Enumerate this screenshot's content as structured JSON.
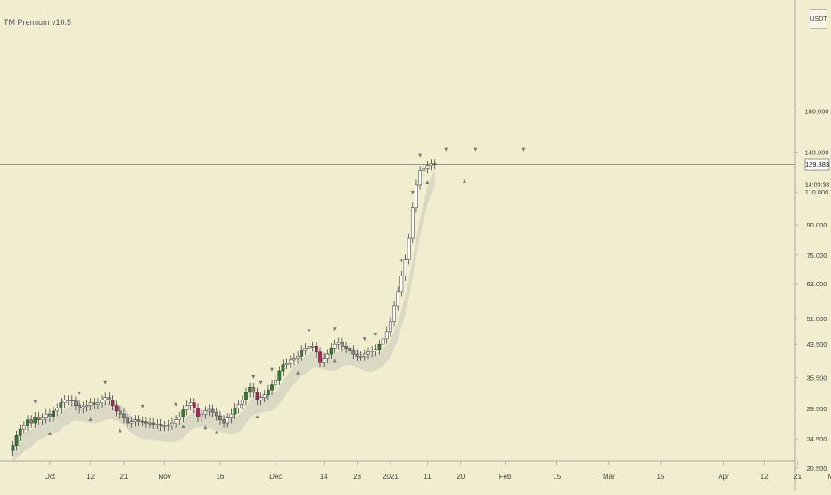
{
  "indicator": {
    "title": "TM Premium v10.5"
  },
  "currency_badge": "USDT",
  "price_label": {
    "value": "129.883",
    "countdown": "14:03:38"
  },
  "colors": {
    "background": "#f1eed0",
    "band": "#d6d5c2",
    "candle_up": "#ffffff",
    "candle_down": "#2c2c2c",
    "green": "#2e7d32",
    "red": "#c2185b",
    "gray": "#8a8a8a",
    "wick": "#333333",
    "grid_axis": "#999999"
  },
  "chart_data": {
    "type": "candlestick",
    "y_scale": "log",
    "y_ticks": [
      "20.500",
      "24.500",
      "29.500",
      "35.500",
      "43.500",
      "51.000",
      "63.000",
      "75.000",
      "90.000",
      "110.000",
      "129.883",
      "140.000",
      "180.000"
    ],
    "y_tick_values": [
      20.5,
      24.5,
      29.5,
      35.5,
      43.5,
      51,
      63,
      75,
      90,
      110,
      129.883,
      140,
      180
    ],
    "x_ticks": [
      "Oct",
      "12",
      "21",
      "Nov",
      "16",
      "Dec",
      "14",
      "23",
      "2021",
      "11",
      "20",
      "Feb",
      "15",
      "Mar",
      "15",
      "Apr",
      "12",
      "21",
      "May"
    ],
    "x_tick_dates": [
      "2020-10-01",
      "2020-10-12",
      "2020-10-21",
      "2020-11-01",
      "2020-11-16",
      "2020-12-01",
      "2020-12-14",
      "2020-12-23",
      "2021-01-01",
      "2021-01-11",
      "2021-01-20",
      "2021-02-01",
      "2021-02-15",
      "2021-03-01",
      "2021-03-15",
      "2021-04-01",
      "2021-04-12",
      "2021-04-21",
      "2021-05-01"
    ],
    "last_price": 129.883,
    "candles_start": "2020-09-21",
    "candle_interval": "1 day",
    "closes": [
      23.5,
      25,
      26,
      26.5,
      27.5,
      27,
      28,
      27.5,
      27.8,
      28.5,
      28,
      29,
      29.5,
      30.5,
      31,
      31,
      30.8,
      30,
      29.5,
      29.8,
      30,
      30.5,
      30.2,
      30.5,
      31,
      31.5,
      31,
      30,
      29,
      28.5,
      27.8,
      27,
      27.2,
      27.5,
      27.3,
      27.2,
      27,
      27,
      26.8,
      26.8,
      26.5,
      26.5,
      26.7,
      27,
      27.5,
      28,
      29.2,
      30,
      30.5,
      29.5,
      28,
      28.5,
      29,
      29.3,
      28.8,
      28.2,
      27.5,
      27,
      27.8,
      28.5,
      29.5,
      30.2,
      31,
      32.5,
      33.5,
      32.5,
      31,
      31.5,
      32,
      33,
      34,
      35,
      37,
      38.5,
      38.8,
      39.5,
      40,
      40.5,
      42,
      42.5,
      43,
      43,
      41.5,
      39,
      40,
      41,
      42.5,
      43.5,
      44,
      43,
      42.5,
      42,
      41,
      40.5,
      40.5,
      41,
      41.5,
      41.8,
      42.2,
      43.5,
      45,
      47,
      50,
      55,
      60,
      66,
      73,
      83,
      100,
      115,
      125,
      127,
      129,
      130.5,
      129.883
    ],
    "signals": [
      {
        "date": "2020-09-27",
        "type": "sell"
      },
      {
        "date": "2020-10-09",
        "type": "sell"
      },
      {
        "date": "2020-10-16",
        "type": "sell"
      },
      {
        "date": "2020-10-26",
        "type": "sell"
      },
      {
        "date": "2020-11-04",
        "type": "sell"
      },
      {
        "date": "2020-11-25",
        "type": "sell"
      },
      {
        "date": "2020-11-27",
        "type": "sell"
      },
      {
        "date": "2020-11-30",
        "type": "sell"
      },
      {
        "date": "2020-12-10",
        "type": "sell"
      },
      {
        "date": "2020-12-17",
        "type": "sell"
      },
      {
        "date": "2020-12-25",
        "type": "sell"
      },
      {
        "date": "2020-12-28",
        "type": "sell"
      },
      {
        "date": "2021-01-04",
        "type": "sell"
      },
      {
        "date": "2021-01-07",
        "type": "sell"
      },
      {
        "date": "2021-01-09",
        "type": "sell"
      },
      {
        "date": "2021-01-16",
        "type": "sell"
      },
      {
        "date": "2021-01-24",
        "type": "sell"
      },
      {
        "date": "2021-02-06",
        "type": "sell"
      },
      {
        "date": "2020-10-01",
        "type": "buy"
      },
      {
        "date": "2020-10-12",
        "type": "buy"
      },
      {
        "date": "2020-10-20",
        "type": "buy"
      },
      {
        "date": "2020-11-06",
        "type": "buy"
      },
      {
        "date": "2020-11-12",
        "type": "buy"
      },
      {
        "date": "2020-11-15",
        "type": "buy"
      },
      {
        "date": "2020-11-26",
        "type": "buy"
      },
      {
        "date": "2020-12-07",
        "type": "buy"
      },
      {
        "date": "2020-12-17",
        "type": "buy"
      },
      {
        "date": "2021-01-11",
        "type": "buy"
      },
      {
        "date": "2021-01-21",
        "type": "buy"
      }
    ]
  }
}
